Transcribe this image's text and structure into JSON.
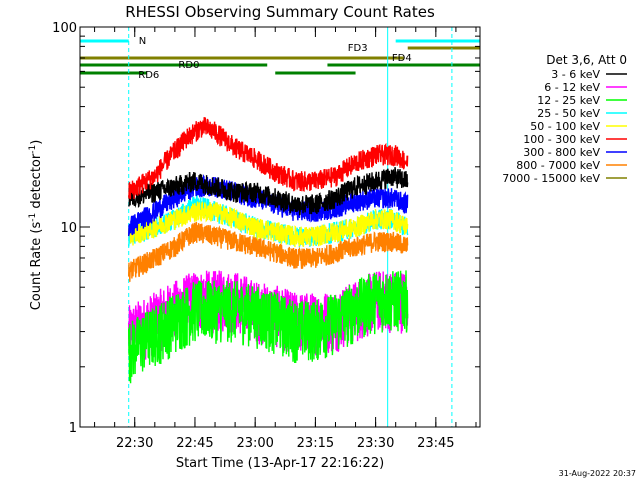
{
  "chart_data": {
    "type": "line",
    "title": "RHESSI Observing Summary Count Rates",
    "xlabel": "Start Time (13-Apr-17 22:16:22)",
    "ylabel_main": "Count Rate (s",
    "ylabel_sup1": "-1",
    "ylabel_mid": " detector",
    "ylabel_sup2": "-1",
    "ylabel_end": ")",
    "y_scale": "log",
    "ylim": [
      1,
      100
    ],
    "y_ticks": [
      {
        "value": 1,
        "label": "1"
      },
      {
        "value": 10,
        "label": "10"
      },
      {
        "value": 100,
        "label": "100"
      }
    ],
    "xlim": [
      "22:16:22",
      "23:56:00"
    ],
    "x_ticks": [
      {
        "t": "22:30",
        "label": "22:30"
      },
      {
        "t": "22:45",
        "label": "22:45"
      },
      {
        "t": "23:00",
        "label": "23:00"
      },
      {
        "t": "23:15",
        "label": "23:15"
      },
      {
        "t": "23:30",
        "label": "23:30"
      },
      {
        "t": "23:45",
        "label": "23:45"
      }
    ],
    "data_start": "22:28:30",
    "data_end": "23:38:00",
    "legend_header": "Det 3,6, Att 0",
    "legend_position": "right",
    "series": [
      {
        "name": "3 - 6 keV",
        "color": "#000000",
        "points": [
          [
            "22:28:30",
            14
          ],
          [
            "22:35:00",
            15
          ],
          [
            "22:40:00",
            16
          ],
          [
            "22:45:00",
            17
          ],
          [
            "22:50:00",
            16
          ],
          [
            "22:55:00",
            15
          ],
          [
            "23:00:00",
            15
          ],
          [
            "23:05:00",
            14
          ],
          [
            "23:10:00",
            13
          ],
          [
            "23:15:00",
            13
          ],
          [
            "23:20:00",
            14
          ],
          [
            "23:25:00",
            16
          ],
          [
            "23:30:00",
            17
          ],
          [
            "23:34:00",
            18
          ],
          [
            "23:38:00",
            17
          ]
        ]
      },
      {
        "name": "6 - 12 keV",
        "color": "#ff00ff",
        "points": [
          [
            "22:28:30",
            3
          ],
          [
            "22:35:00",
            3.5
          ],
          [
            "22:40:00",
            4
          ],
          [
            "22:45:00",
            4.5
          ],
          [
            "22:50:00",
            4.5
          ],
          [
            "22:55:00",
            4.5
          ],
          [
            "23:00:00",
            4
          ],
          [
            "23:05:00",
            3.8
          ],
          [
            "23:10:00",
            3.5
          ],
          [
            "23:15:00",
            3.5
          ],
          [
            "23:20:00",
            3.6
          ],
          [
            "23:25:00",
            4
          ],
          [
            "23:30:00",
            4.5
          ],
          [
            "23:34:00",
            4.5
          ],
          [
            "23:38:00",
            4.5
          ]
        ]
      },
      {
        "name": "12 - 25 keV",
        "color": "#00ff00",
        "points": [
          [
            "22:28:30",
            2.5
          ],
          [
            "22:35:00",
            3
          ],
          [
            "22:40:00",
            3.5
          ],
          [
            "22:45:00",
            4
          ],
          [
            "22:50:00",
            4
          ],
          [
            "22:55:00",
            4
          ],
          [
            "23:00:00",
            3.8
          ],
          [
            "23:05:00",
            3.5
          ],
          [
            "23:10:00",
            3.2
          ],
          [
            "23:15:00",
            3.2
          ],
          [
            "23:20:00",
            3.5
          ],
          [
            "23:25:00",
            4
          ],
          [
            "23:30:00",
            4.5
          ],
          [
            "23:34:00",
            4.5
          ],
          [
            "23:38:00",
            4.5
          ]
        ]
      },
      {
        "name": "25 - 50 keV",
        "color": "#00ffff",
        "points": [
          [
            "22:28:30",
            9
          ],
          [
            "22:35:00",
            10
          ],
          [
            "22:40:00",
            11
          ],
          [
            "22:45:00",
            13
          ],
          [
            "22:50:00",
            12
          ],
          [
            "22:55:00",
            11
          ],
          [
            "23:00:00",
            10
          ],
          [
            "23:05:00",
            9.5
          ],
          [
            "23:10:00",
            9
          ],
          [
            "23:15:00",
            9
          ],
          [
            "23:20:00",
            9.5
          ],
          [
            "23:25:00",
            10
          ],
          [
            "23:30:00",
            11
          ],
          [
            "23:34:00",
            11
          ],
          [
            "23:38:00",
            10
          ]
        ]
      },
      {
        "name": "50 - 100 keV",
        "color": "#ffff00",
        "points": [
          [
            "22:28:30",
            9
          ],
          [
            "22:35:00",
            10
          ],
          [
            "22:40:00",
            11
          ],
          [
            "22:45:00",
            12
          ],
          [
            "22:50:00",
            12
          ],
          [
            "22:55:00",
            11
          ],
          [
            "23:00:00",
            10
          ],
          [
            "23:05:00",
            9.5
          ],
          [
            "23:10:00",
            9
          ],
          [
            "23:15:00",
            9
          ],
          [
            "23:20:00",
            9.5
          ],
          [
            "23:25:00",
            10
          ],
          [
            "23:30:00",
            11
          ],
          [
            "23:34:00",
            11
          ],
          [
            "23:38:00",
            10
          ]
        ]
      },
      {
        "name": "100 - 300 keV",
        "color": "#ff0000",
        "points": [
          [
            "22:28:30",
            15
          ],
          [
            "22:35:00",
            18
          ],
          [
            "22:40:00",
            24
          ],
          [
            "22:43:00",
            28
          ],
          [
            "22:47:00",
            32
          ],
          [
            "22:50:00",
            30
          ],
          [
            "22:55:00",
            25
          ],
          [
            "23:00:00",
            22
          ],
          [
            "23:05:00",
            19
          ],
          [
            "23:10:00",
            17
          ],
          [
            "23:15:00",
            17
          ],
          [
            "23:20:00",
            18
          ],
          [
            "23:25:00",
            21
          ],
          [
            "23:30:00",
            23
          ],
          [
            "23:35:00",
            23
          ],
          [
            "23:38:00",
            21
          ]
        ]
      },
      {
        "name": "300 - 800 keV",
        "color": "#0000ff",
        "points": [
          [
            "22:28:30",
            10
          ],
          [
            "22:35:00",
            12
          ],
          [
            "22:40:00",
            14
          ],
          [
            "22:45:00",
            16
          ],
          [
            "22:50:00",
            16
          ],
          [
            "22:55:00",
            15
          ],
          [
            "23:00:00",
            14
          ],
          [
            "23:05:00",
            13
          ],
          [
            "23:10:00",
            12
          ],
          [
            "23:15:00",
            12
          ],
          [
            "23:20:00",
            12.5
          ],
          [
            "23:25:00",
            13.5
          ],
          [
            "23:30:00",
            14
          ],
          [
            "23:34:00",
            14
          ],
          [
            "23:38:00",
            13
          ]
        ]
      },
      {
        "name": "800 - 7000 keV",
        "color": "#ff8000",
        "points": [
          [
            "22:28:30",
            6
          ],
          [
            "22:35:00",
            7
          ],
          [
            "22:40:00",
            8
          ],
          [
            "22:45:00",
            9.5
          ],
          [
            "22:50:00",
            9
          ],
          [
            "22:55:00",
            8.5
          ],
          [
            "23:00:00",
            8
          ],
          [
            "23:05:00",
            7.5
          ],
          [
            "23:10:00",
            7
          ],
          [
            "23:15:00",
            7
          ],
          [
            "23:20:00",
            7.5
          ],
          [
            "23:25:00",
            8
          ],
          [
            "23:30:00",
            8.5
          ],
          [
            "23:34:00",
            8.5
          ],
          [
            "23:38:00",
            8
          ]
        ]
      },
      {
        "name": "7000 - 15000 keV",
        "color": "#808000",
        "points": []
      }
    ],
    "flags": [
      {
        "label": "N",
        "color": "#00ffff",
        "segments": [
          [
            "22:16:22",
            "22:28:30"
          ],
          [
            "23:35:00",
            "23:56:00"
          ]
        ]
      },
      {
        "label": "FD3",
        "color": "#808000",
        "segments": [
          [
            "23:38:00",
            "23:56:00"
          ]
        ]
      },
      {
        "label": "FD4",
        "color": "#808000",
        "segments": [
          [
            "22:16:22",
            "23:37:00"
          ]
        ]
      },
      {
        "label": "RD0",
        "color": "#008000",
        "segments": [
          [
            "22:16:22",
            "23:03:00"
          ],
          [
            "23:18:00",
            "23:56:00"
          ]
        ]
      },
      {
        "label": "RD6",
        "color": "#008000",
        "segments": [
          [
            "22:16:22",
            "22:33:00"
          ],
          [
            "23:05:00",
            "23:25:00"
          ]
        ]
      }
    ],
    "vertical_markers": [
      {
        "t": "22:28:30",
        "style": "dashed",
        "color": "#00ffff"
      },
      {
        "t": "23:33:00",
        "style": "solid",
        "color": "#00ffff"
      },
      {
        "t": "23:49:00",
        "style": "dashed",
        "color": "#00ffff"
      }
    ]
  },
  "footer": {
    "date_stamp": "31-Aug-2022 20:37"
  }
}
